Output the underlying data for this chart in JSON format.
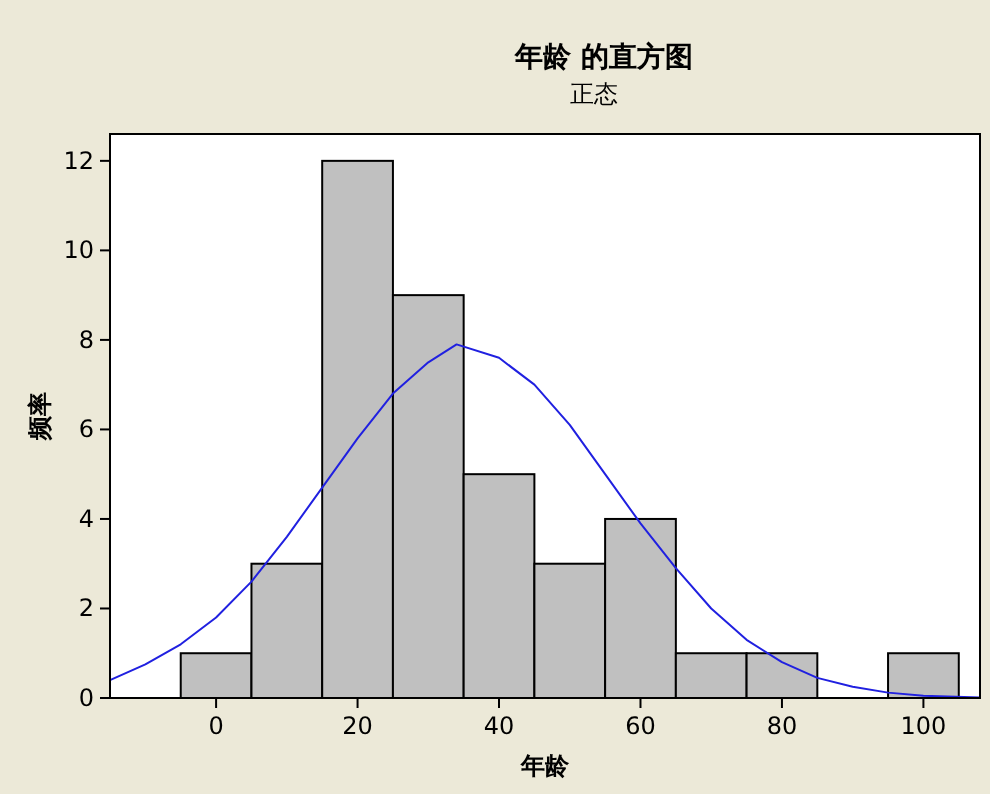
{
  "chart_data": {
    "type": "histogram",
    "title": "年龄 的直方图",
    "subtitle": "正态",
    "xlabel": "年龄",
    "ylabel": "频率",
    "bins": [
      -5,
      5,
      15,
      25,
      35,
      45,
      55,
      65,
      75,
      85,
      95,
      105
    ],
    "values": [
      1,
      3,
      12,
      9,
      5,
      3,
      4,
      1,
      1,
      0,
      1
    ],
    "color": "#c0c0c0",
    "series": [
      {
        "type": "line",
        "color": "#2020e0",
        "x": [
          -15,
          -10,
          -5,
          0,
          5,
          10,
          15,
          20,
          25,
          30,
          34,
          40,
          45,
          50,
          55,
          60,
          65,
          70,
          75,
          80,
          85,
          90,
          95,
          100,
          108
        ],
        "values": [
          0.4,
          0.75,
          1.2,
          1.8,
          2.6,
          3.6,
          4.7,
          5.8,
          6.8,
          7.5,
          7.9,
          7.6,
          7.0,
          6.1,
          5.0,
          3.9,
          2.9,
          2.0,
          1.3,
          0.8,
          0.45,
          0.25,
          0.12,
          0.05,
          0.01
        ]
      }
    ],
    "xlim": [
      -15,
      108
    ],
    "ylim": [
      0,
      12.6
    ],
    "xticks": [
      0,
      20,
      40,
      60,
      80,
      100
    ],
    "yticks": [
      0,
      2,
      4,
      6,
      8,
      10,
      12
    ],
    "grid": false
  }
}
